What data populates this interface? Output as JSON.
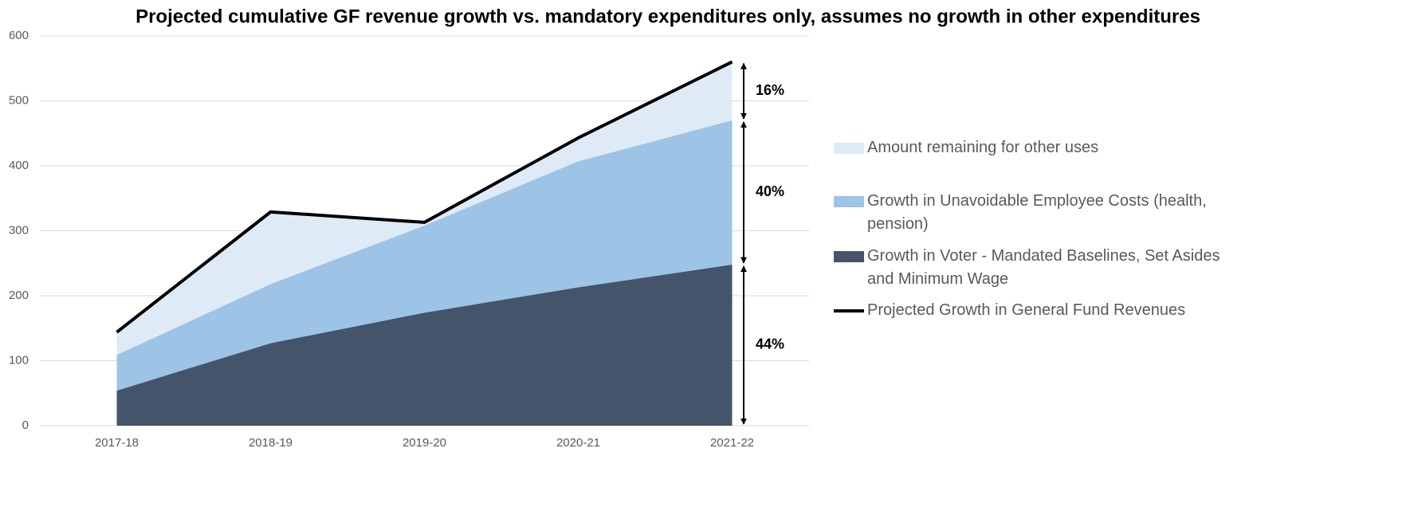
{
  "chart_data": {
    "type": "stacked-area-line",
    "title": "Projected cumulative GF revenue growth vs. mandatory expenditures only, assumes no growth in other expenditures",
    "categories": [
      "2017-18",
      "2018-19",
      "2019-20",
      "2020-21",
      "2021-22"
    ],
    "series": [
      {
        "name": "Growth in Voter - Mandated Baselines, Set Asides and Minimum Wage",
        "color": "#44546a",
        "values": [
          54,
          127,
          174,
          213,
          248
        ]
      },
      {
        "name": "Growth in Unavoidable Employee Costs (health, pension)",
        "color": "#9dc3e6",
        "values": [
          55,
          91,
          134,
          194,
          222
        ]
      },
      {
        "name": "Amount remaining for other uses",
        "color": "#deebf7",
        "values": [
          35,
          111,
          5,
          36,
          90
        ]
      },
      {
        "name": "Projected Growth in General Fund Revenues",
        "color": "#000000",
        "type": "line",
        "values": [
          144,
          329,
          313,
          443,
          560
        ]
      }
    ],
    "annotations": [
      "16%",
      "40%",
      "44%"
    ],
    "ylim": [
      0,
      600
    ],
    "yticks": [
      0,
      100,
      200,
      300,
      400,
      500,
      600
    ],
    "grid": true,
    "legend": "right"
  }
}
